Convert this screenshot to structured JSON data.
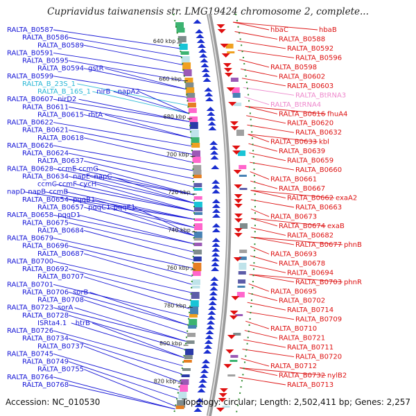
{
  "title": "Cupriavidus taiwanensis str. LMG19424 chromosome 2, complete...",
  "footer": {
    "accession": "Accession: NC_010530",
    "summary": "Topology: circular; Length: 2,502,411 bp; Genes: 2,257"
  },
  "colors": {
    "left_label": "#1515d6",
    "right_label": "#dd1111",
    "rna_left": "#29b7d6",
    "rna_right": "#ee88cc",
    "backbone": "#9a9a9a",
    "scale": "#2e8b2e",
    "forward_gene": "#1a2fd0",
    "reverse_gene": "#e01010"
  },
  "scale_marks": [
    "640 kbp",
    "660 kbp",
    "680 kbp",
    "700 kbp",
    "720 kbp",
    "740 kbp",
    "760 kbp",
    "780 kbp",
    "800 kbp",
    "820 kbp"
  ],
  "left_labels": [
    {
      "text": "RALTA_B0587",
      "kind": "gene"
    },
    {
      "text": "RALTA_B0586",
      "kind": "gene"
    },
    {
      "text": "RALTA_B0589",
      "kind": "gene"
    },
    {
      "text": "RALTA_B0591",
      "kind": "gene"
    },
    {
      "text": "RALTA_B0595",
      "kind": "gene"
    },
    {
      "text": "RALTA_B0594",
      "kind": "gene"
    },
    {
      "text": "gstR",
      "kind": "gene"
    },
    {
      "text": "RALTA_B0599",
      "kind": "gene"
    },
    {
      "text": "RALTA_B_23S_1",
      "kind": "rna"
    },
    {
      "text": "RALTA_B_16S_1",
      "kind": "rna"
    },
    {
      "text": "nirB",
      "kind": "gene"
    },
    {
      "text": "napA2",
      "kind": "gene"
    },
    {
      "text": "RALTA_B0607",
      "kind": "gene"
    },
    {
      "text": "nirD2",
      "kind": "gene"
    },
    {
      "text": "RALTA_B0611",
      "kind": "gene"
    },
    {
      "text": "RALTA_B0615",
      "kind": "gene"
    },
    {
      "text": "rhtA",
      "kind": "gene"
    },
    {
      "text": "RALTA_B0622",
      "kind": "gene"
    },
    {
      "text": "RALTA_B0621",
      "kind": "gene"
    },
    {
      "text": "RALTA_B0618",
      "kind": "gene"
    },
    {
      "text": "RALTA_B0626",
      "kind": "gene"
    },
    {
      "text": "RALTA_B0624",
      "kind": "gene"
    },
    {
      "text": "RALTA_B0637",
      "kind": "gene"
    },
    {
      "text": "RALTA_B0628",
      "kind": "gene"
    },
    {
      "text": "ccmE",
      "kind": "gene"
    },
    {
      "text": "ccmG",
      "kind": "gene"
    },
    {
      "text": "RALTA_B0634",
      "kind": "gene"
    },
    {
      "text": "napE",
      "kind": "gene"
    },
    {
      "text": "napC",
      "kind": "gene"
    },
    {
      "text": "ccmC",
      "kind": "gene"
    },
    {
      "text": "ccmF",
      "kind": "gene"
    },
    {
      "text": "cycH",
      "kind": "gene"
    },
    {
      "text": "napD",
      "kind": "gene"
    },
    {
      "text": "napB",
      "kind": "gene"
    },
    {
      "text": "ccmB",
      "kind": "gene"
    },
    {
      "text": "RALTA_B0654",
      "kind": "gene"
    },
    {
      "text": "pqqB1",
      "kind": "gene"
    },
    {
      "text": "RALTA_B0657",
      "kind": "gene"
    },
    {
      "text": "pqqC1",
      "kind": "gene"
    },
    {
      "text": "pqqE1",
      "kind": "gene"
    },
    {
      "text": "RALTA_B0658",
      "kind": "gene"
    },
    {
      "text": "pqqD1",
      "kind": "gene"
    },
    {
      "text": "RALTA_B0675",
      "kind": "gene"
    },
    {
      "text": "RALTA_B0684",
      "kind": "gene"
    },
    {
      "text": "RALTA_B0679",
      "kind": "gene"
    },
    {
      "text": "RALTA_B0696",
      "kind": "gene"
    },
    {
      "text": "RALTA_B0687",
      "kind": "gene"
    },
    {
      "text": "RALTA_B0700",
      "kind": "gene"
    },
    {
      "text": "RALTA_B0692",
      "kind": "gene"
    },
    {
      "text": "RALTA_B0707",
      "kind": "gene"
    },
    {
      "text": "RALTA_B0701",
      "kind": "gene"
    },
    {
      "text": "RALTA_B0706",
      "kind": "gene"
    },
    {
      "text": "sorB",
      "kind": "gene"
    },
    {
      "text": "RALTA_B0708",
      "kind": "gene"
    },
    {
      "text": "RALTA_B0723",
      "kind": "gene"
    },
    {
      "text": "sorA",
      "kind": "gene"
    },
    {
      "text": "RALTA_B0728",
      "kind": "gene"
    },
    {
      "text": "ISRta4.1",
      "kind": "gene"
    },
    {
      "text": "htrB",
      "kind": "gene"
    },
    {
      "text": "RALTA_B0726",
      "kind": "gene"
    },
    {
      "text": "RALTA_B0734",
      "kind": "gene"
    },
    {
      "text": "RALTA_B0737",
      "kind": "gene"
    },
    {
      "text": "RALTA_B0745",
      "kind": "gene"
    },
    {
      "text": "RALTA_B0749",
      "kind": "gene"
    },
    {
      "text": "RALTA_B0755",
      "kind": "gene"
    },
    {
      "text": "RALTA_B0764",
      "kind": "gene"
    },
    {
      "text": "RALTA_B0768",
      "kind": "gene"
    }
  ],
  "right_labels": [
    {
      "text": "hbaC",
      "kind": "gene"
    },
    {
      "text": "hbaB",
      "kind": "gene"
    },
    {
      "text": "RALTA_B0588",
      "kind": "gene"
    },
    {
      "text": "RALTA_B0592",
      "kind": "gene"
    },
    {
      "text": "RALTA_B0596",
      "kind": "gene"
    },
    {
      "text": "RALTA_B0598",
      "kind": "gene"
    },
    {
      "text": "RALTA_B0602",
      "kind": "gene"
    },
    {
      "text": "RALTA_B0603",
      "kind": "gene"
    },
    {
      "text": "RALTA_BtRNA3",
      "kind": "rna"
    },
    {
      "text": "RALTA_BtRNA4",
      "kind": "rna"
    },
    {
      "text": "RALTA_B0616",
      "kind": "gene"
    },
    {
      "text": "fhuA4",
      "kind": "gene"
    },
    {
      "text": "RALTA_B0620",
      "kind": "gene"
    },
    {
      "text": "RALTA_B0632",
      "kind": "gene"
    },
    {
      "text": "RALTA_B0633",
      "kind": "gene"
    },
    {
      "text": "kbl",
      "kind": "gene"
    },
    {
      "text": "RALTA_B0639",
      "kind": "gene"
    },
    {
      "text": "RALTA_B0659",
      "kind": "gene"
    },
    {
      "text": "RALTA_B0660",
      "kind": "gene"
    },
    {
      "text": "RALTA_B0661",
      "kind": "gene"
    },
    {
      "text": "RALTA_B0667",
      "kind": "gene"
    },
    {
      "text": "RALTA_B0662",
      "kind": "gene"
    },
    {
      "text": "exaA2",
      "kind": "gene"
    },
    {
      "text": "RALTA_B0663",
      "kind": "gene"
    },
    {
      "text": "RALTA_B0673",
      "kind": "gene"
    },
    {
      "text": "RALTA_B0674",
      "kind": "gene"
    },
    {
      "text": "exaB",
      "kind": "gene"
    },
    {
      "text": "RALTA_B0682",
      "kind": "gene"
    },
    {
      "text": "RALTA_B0677",
      "kind": "gene"
    },
    {
      "text": "phnB",
      "kind": "gene"
    },
    {
      "text": "RALTA_B0693",
      "kind": "gene"
    },
    {
      "text": "RALTA_B0678",
      "kind": "gene"
    },
    {
      "text": "RALTA_B0694",
      "kind": "gene"
    },
    {
      "text": "RALTA_B0703",
      "kind": "gene"
    },
    {
      "text": "phnR",
      "kind": "gene"
    },
    {
      "text": "RALTA_B0695",
      "kind": "gene"
    },
    {
      "text": "RALTA_B0702",
      "kind": "gene"
    },
    {
      "text": "RALTA_B0714",
      "kind": "gene"
    },
    {
      "text": "RALTA_B0709",
      "kind": "gene"
    },
    {
      "text": "RALTA_B0710",
      "kind": "gene"
    },
    {
      "text": "RALTA_B0721",
      "kind": "gene"
    },
    {
      "text": "RALTA_B0711",
      "kind": "gene"
    },
    {
      "text": "RALTA_B0720",
      "kind": "gene"
    },
    {
      "text": "RALTA_B0712",
      "kind": "gene"
    },
    {
      "text": "RALTA_B0732",
      "kind": "gene"
    },
    {
      "text": "nylB2",
      "kind": "gene"
    },
    {
      "text": "RALTA_B0713",
      "kind": "gene"
    }
  ]
}
